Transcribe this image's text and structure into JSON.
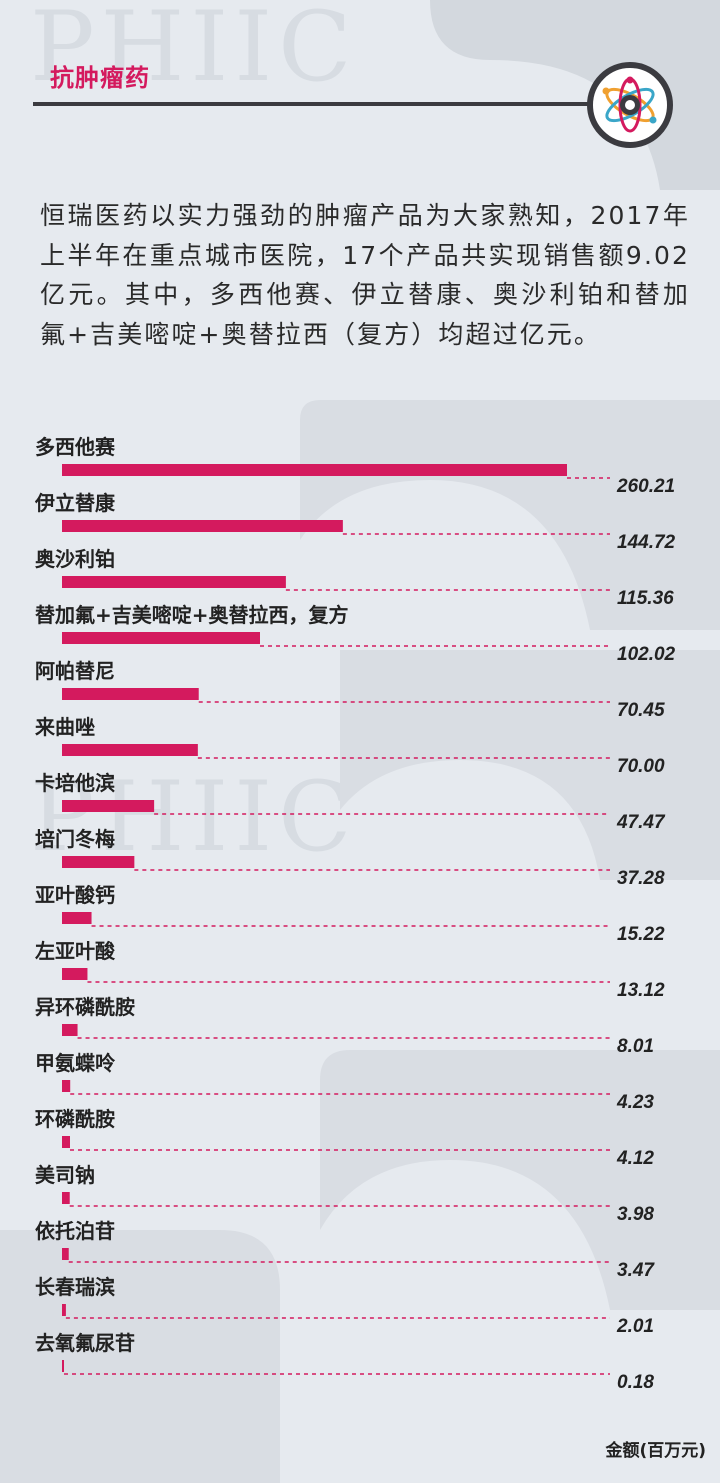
{
  "section": {
    "title": "抗肿瘤药"
  },
  "intro": {
    "text": "恒瑞医药以实力强劲的肿瘤产品为大家熟知，2017年上半年在重点城市医院，17个产品共实现销售额9.02亿元。其中，多西他赛、伊立替康、奥沙利铂和替加氟+吉美嘧啶+奥替拉西（复方）均超过亿元。"
  },
  "watermark": "PHIIC",
  "colors": {
    "accent": "#d41a5e",
    "dark": "#3b3b40",
    "background": "#e6eaef",
    "dash": "#d41a5e"
  },
  "chart_data": {
    "type": "bar",
    "orientation": "horizontal",
    "categories": [
      "多西他赛",
      "伊立替康",
      "奥沙利铂",
      "替加氟+吉美嘧啶+奥替拉西，复方",
      "阿帕替尼",
      "来曲唑",
      "卡培他滨",
      "培门冬梅",
      "亚叶酸钙",
      "左亚叶酸",
      "异环磷酰胺",
      "甲氨蝶呤",
      "环磷酰胺",
      "美司钠",
      "依托泊苷",
      "长春瑞滨",
      "去氧氟尿苷"
    ],
    "values": [
      260.21,
      144.72,
      115.36,
      102.02,
      70.45,
      70.0,
      47.47,
      37.28,
      15.22,
      13.12,
      8.01,
      4.23,
      4.12,
      3.98,
      3.47,
      2.01,
      0.18
    ],
    "value_labels": [
      "260.21",
      "144.72",
      "115.36",
      "102.02",
      "70.45",
      "70.00",
      "47.47",
      "37.28",
      "15.22",
      "13.12",
      "8.01",
      "4.23",
      "4.12",
      "3.98",
      "3.47",
      "2.01",
      "0.18"
    ],
    "unit": "金额(百万元)",
    "xlim": [
      0,
      260.21
    ]
  }
}
